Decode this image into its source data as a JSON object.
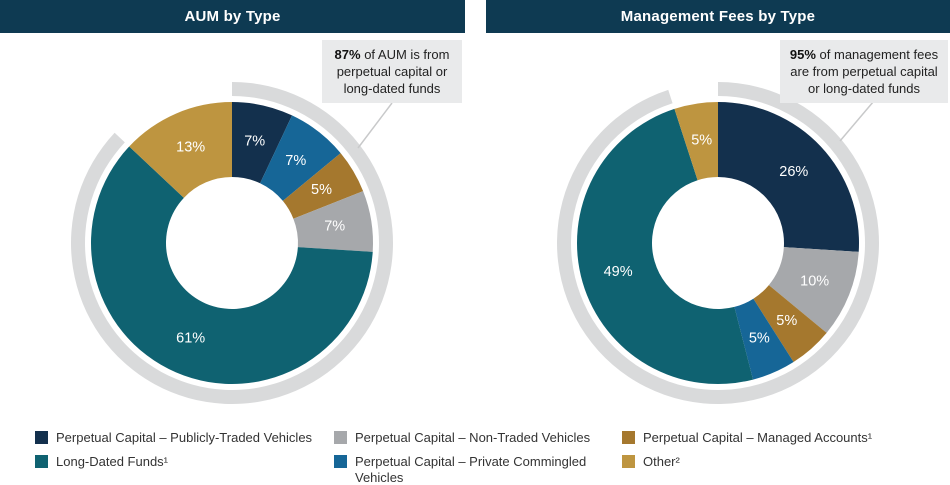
{
  "colors": {
    "navy": "#13304D",
    "gray": "#A6A8AB",
    "bronze": "#A5782E",
    "teal": "#0F6271",
    "blue": "#166697",
    "gold": "#BE9540",
    "title_bar": "#0E3A52",
    "ring": "#D9DADB",
    "callout_bg": "#E9EAEB",
    "leader": "#C8C9CA"
  },
  "legend": {
    "items": [
      {
        "label": "Perpetual Capital – Publicly-Traded Vehicles",
        "color_key": "navy"
      },
      {
        "label": "Perpetual Capital – Non-Traded Vehicles",
        "color_key": "gray"
      },
      {
        "label": "Perpetual Capital – Managed Accounts¹",
        "color_key": "bronze"
      },
      {
        "label": "Long-Dated Funds¹",
        "color_key": "teal"
      },
      {
        "label": "Perpetual Capital – Private Commingled Vehicles",
        "color_key": "blue"
      },
      {
        "label": "Other²",
        "color_key": "gold"
      }
    ]
  },
  "chart_data": [
    {
      "type": "pie",
      "style": "donut",
      "title": "AUM by Type",
      "highlight_pct": 87,
      "callout": {
        "bold": "87%",
        "text": " of AUM is from perpetual capital or long-dated funds"
      },
      "segments": [
        {
          "label": "Perpetual Capital – Publicly-Traded Vehicles",
          "value": 7,
          "color_key": "navy"
        },
        {
          "label": "Perpetual Capital – Private Commingled Vehicles",
          "value": 7,
          "color_key": "blue"
        },
        {
          "label": "Perpetual Capital – Managed Accounts¹",
          "value": 5,
          "color_key": "bronze"
        },
        {
          "label": "Perpetual Capital – Non-Traded Vehicles",
          "value": 7,
          "color_key": "gray"
        },
        {
          "label": "Long-Dated Funds¹",
          "value": 61,
          "color_key": "teal"
        },
        {
          "label": "Other²",
          "value": 13,
          "color_key": "gold"
        }
      ]
    },
    {
      "type": "pie",
      "style": "donut",
      "title": "Management Fees by Type",
      "highlight_pct": 95,
      "callout": {
        "bold": "95%",
        "text": " of management fees are from perpetual capital or long-dated funds"
      },
      "segments": [
        {
          "label": "Perpetual Capital – Publicly-Traded Vehicles",
          "value": 26,
          "color_key": "navy"
        },
        {
          "label": "Perpetual Capital – Non-Traded Vehicles",
          "value": 10,
          "color_key": "gray"
        },
        {
          "label": "Perpetual Capital – Managed Accounts¹",
          "value": 5,
          "color_key": "bronze"
        },
        {
          "label": "Perpetual Capital – Private Commingled Vehicles",
          "value": 5,
          "color_key": "blue"
        },
        {
          "label": "Long-Dated Funds¹",
          "value": 49,
          "color_key": "teal"
        },
        {
          "label": "Other²",
          "value": 5,
          "color_key": "gold"
        }
      ]
    }
  ]
}
